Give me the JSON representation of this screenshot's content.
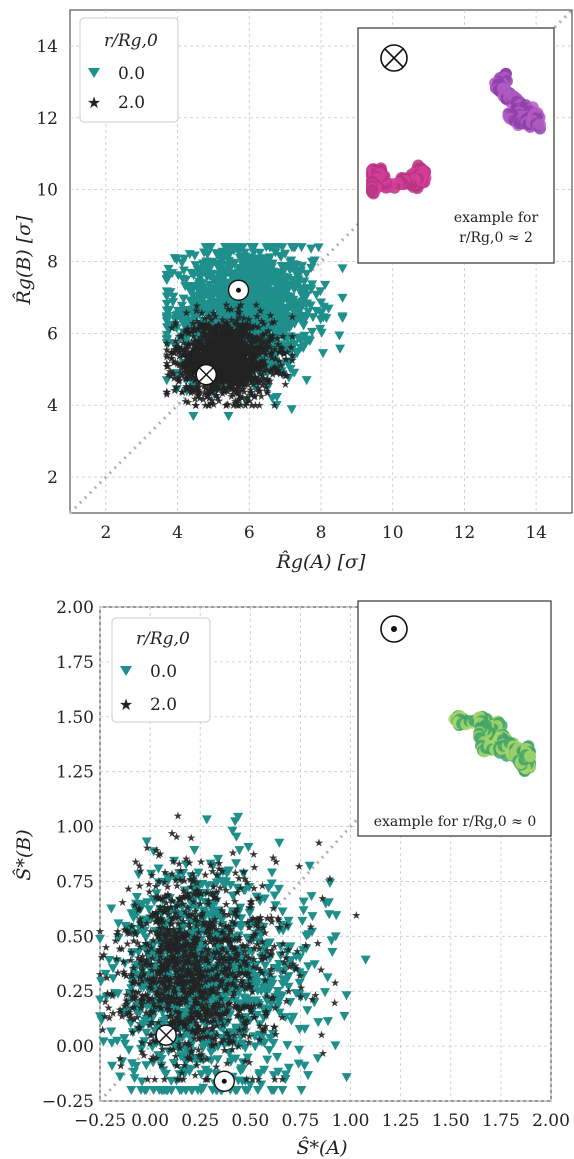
{
  "charts": [
    {
      "type": "scatter",
      "xlabel": "R̂g(A) [σ]",
      "ylabel": "R̂g(B) [σ]",
      "xlim": [
        1,
        15
      ],
      "ylim": [
        1,
        15
      ],
      "xticks": [
        "2",
        "4",
        "6",
        "8",
        "10",
        "12",
        "14"
      ],
      "yticks": [
        "2",
        "4",
        "6",
        "8",
        "10",
        "12",
        "14"
      ],
      "grid": true,
      "diagonal": "dotted y = x",
      "legend": {
        "title": "r/Rg,0",
        "entries": [
          "0.0",
          "2.0"
        ],
        "placement": "top-left"
      },
      "series": [
        {
          "name": "0.0",
          "marker": "triangle-down",
          "color": "#1f8f8c",
          "cluster": {
            "x_center": 5.9,
            "y_center": 6.6,
            "x_range": [
              3.7,
              8.6
            ],
            "y_range": [
              3.7,
              8.4
            ]
          }
        },
        {
          "name": "2.0",
          "marker": "star",
          "color": "#e96fae",
          "cluster": {
            "x_center": 5.3,
            "y_center": 5.3,
            "x_range": [
              3.7,
              7.2
            ],
            "y_range": [
              4.0,
              6.8
            ]
          }
        }
      ],
      "markers": [
        {
          "symbol": "dot-in-circle",
          "x": 5.7,
          "y": 7.2
        },
        {
          "symbol": "cross-in-circle",
          "x": 4.8,
          "y": 4.85
        }
      ],
      "inset": {
        "symbol": "cross-in-circle",
        "caption_line1": "example for",
        "caption_line2": "r/Rg,0 ≈ 2",
        "colors": [
          "#8e44ad",
          "#d4409c"
        ]
      }
    },
    {
      "type": "scatter",
      "xlabel": "Ŝ*(A)",
      "ylabel": "Ŝ*(B)",
      "xlim": [
        -0.25,
        2.0
      ],
      "ylim": [
        -0.25,
        2.0
      ],
      "xticks": [
        "−0.25",
        "0.00",
        "0.25",
        "0.50",
        "0.75",
        "1.00",
        "1.25",
        "1.50",
        "1.75",
        "2.00"
      ],
      "yticks": [
        "−0.25",
        "0.00",
        "0.25",
        "0.50",
        "0.75",
        "1.00",
        "1.25",
        "1.50",
        "1.75",
        "2.00"
      ],
      "grid": true,
      "diagonal": "dotted y = x",
      "legend": {
        "title": "r/Rg,0",
        "entries": [
          "0.0",
          "2.0"
        ],
        "placement": "top-left"
      },
      "series": [
        {
          "name": "0.0",
          "marker": "triangle-down",
          "color": "#1f8f8c",
          "cluster": {
            "x_center": 0.25,
            "y_center": 0.3,
            "x_range": [
              -0.25,
              1.3
            ],
            "y_range": [
              -0.2,
              1.2
            ]
          }
        },
        {
          "name": "2.0",
          "marker": "star",
          "color": "#e96fae",
          "cluster": {
            "x_center": 0.2,
            "y_center": 0.35,
            "x_range": [
              -0.25,
              1.15
            ],
            "y_range": [
              -0.15,
              1.05
            ]
          }
        }
      ],
      "markers": [
        {
          "symbol": "cross-in-circle",
          "x": 0.08,
          "y": 0.05
        },
        {
          "symbol": "dot-in-circle",
          "x": 0.37,
          "y": -0.16
        }
      ],
      "inset": {
        "symbol": "dot-in-circle",
        "caption_line1": "example for r/Rg,0 ≈ 0",
        "colors": [
          "#3fa36a",
          "#a8d66a"
        ]
      }
    }
  ]
}
